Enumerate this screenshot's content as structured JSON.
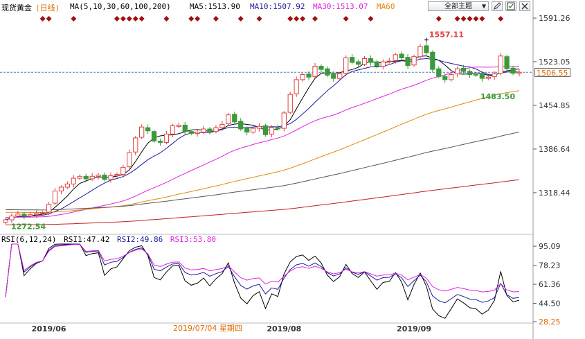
{
  "header": {
    "symbol": "现货黄金",
    "period": "(日线)",
    "ma_params": "MA(5,10,30,60,100,200)",
    "ma5": "MA5:1513.90",
    "ma10": "MA10:1507.92",
    "ma30": "MA30:1513.07",
    "ma60": "MA60",
    "theme_button": "全部主题",
    "theme_arrow": "▼"
  },
  "rsi_header": {
    "params": "RSI(6,12,24)",
    "rsi1": "RSI1:47.42",
    "rsi2": "RSI2:49.86",
    "rsi3": "RSI3:53.80"
  },
  "current_price_tag": "1506.55",
  "date_tooltip": "2019/07/04 星期四",
  "colors": {
    "up": "#e04040",
    "down": "#3a9a3a",
    "ma5": "#000000",
    "ma10": "#1a1aa0",
    "ma30": "#e020e0",
    "ma60": "#e08a10",
    "ma100": "#555555",
    "ma200": "#c02020",
    "high_label": "#e04040",
    "low_label": "#3a9a3a",
    "price_line": "#4a7ac0",
    "event_marker": "#a01010"
  },
  "chart_data": [
    {
      "type": "candlestick",
      "title": "现货黄金 (日线)",
      "y_ticks": [
        1318.44,
        1386.64,
        1454.85,
        1523.05,
        1591.26
      ],
      "y_tick_labels": [
        "1318.44",
        "1386.64",
        "1454.85",
        "1523.05",
        "1591.26"
      ],
      "ylim": [
        1262,
        1600
      ],
      "x_labels": [
        "2019/06",
        "2019/08",
        "2019/09"
      ],
      "x_label_indices": [
        7,
        45,
        66
      ],
      "current_price": 1506.55,
      "current_price_label": "1506.55",
      "high_label": "1557.11",
      "high_index": 68,
      "high_value": 1557.11,
      "low_label": "1272.54",
      "low_index": 0,
      "low_value": 1272.54,
      "ma60_end_label": "1483.50",
      "event_marker_indices": [
        6,
        7,
        11,
        18,
        19,
        20,
        21,
        22,
        26,
        30,
        31,
        34,
        38,
        41,
        46,
        47,
        48,
        50,
        55,
        59,
        70,
        73,
        74,
        75,
        76,
        77,
        80
      ],
      "closes": [
        1276,
        1282,
        1285,
        1282,
        1284,
        1286,
        1287,
        1300,
        1321,
        1327,
        1332,
        1341,
        1344,
        1340,
        1344,
        1346,
        1339,
        1345,
        1347,
        1358,
        1381,
        1404,
        1421,
        1415,
        1399,
        1397,
        1410,
        1423,
        1424,
        1414,
        1411,
        1413,
        1418,
        1414,
        1420,
        1425,
        1440,
        1429,
        1418,
        1413,
        1419,
        1422,
        1409,
        1420,
        1418,
        1443,
        1472,
        1495,
        1503,
        1499,
        1516,
        1511,
        1502,
        1497,
        1504,
        1529,
        1522,
        1519,
        1528,
        1522,
        1516,
        1523,
        1524,
        1534,
        1529,
        1517,
        1531,
        1547,
        1537,
        1511,
        1500,
        1495,
        1503,
        1512,
        1508,
        1503,
        1502,
        1497,
        1499,
        1504,
        1532,
        1512,
        1505,
        1506.55
      ],
      "opens": [
        1272,
        1276,
        1282,
        1285,
        1282,
        1284,
        1286,
        1288,
        1302,
        1321,
        1327,
        1332,
        1341,
        1344,
        1340,
        1344,
        1346,
        1339,
        1345,
        1347,
        1359,
        1382,
        1405,
        1420,
        1414,
        1399,
        1397,
        1410,
        1422,
        1424,
        1414,
        1411,
        1413,
        1418,
        1414,
        1420,
        1426,
        1441,
        1430,
        1419,
        1413,
        1419,
        1423,
        1410,
        1420,
        1419,
        1444,
        1473,
        1495,
        1504,
        1500,
        1516,
        1512,
        1503,
        1497,
        1505,
        1530,
        1523,
        1519,
        1528,
        1523,
        1516,
        1523,
        1525,
        1535,
        1530,
        1518,
        1531,
        1548,
        1538,
        1512,
        1500,
        1495,
        1504,
        1513,
        1508,
        1503,
        1503,
        1497,
        1500,
        1505,
        1531,
        1513,
        1505
      ]
    },
    {
      "type": "line",
      "title": "RSI(6,12,24)",
      "y_ticks": [
        28.25,
        44.5,
        61.36,
        78.23,
        95.09
      ],
      "y_tick_labels": [
        "28.25",
        "44.50",
        "61.36",
        "78.23",
        "95.09"
      ],
      "ylim": [
        28.25,
        97
      ],
      "series": [
        {
          "name": "RSI1",
          "color": "#000000"
        },
        {
          "name": "RSI2",
          "color": "#1a1aa0"
        },
        {
          "name": "RSI3",
          "color": "#e020e0"
        }
      ]
    }
  ]
}
